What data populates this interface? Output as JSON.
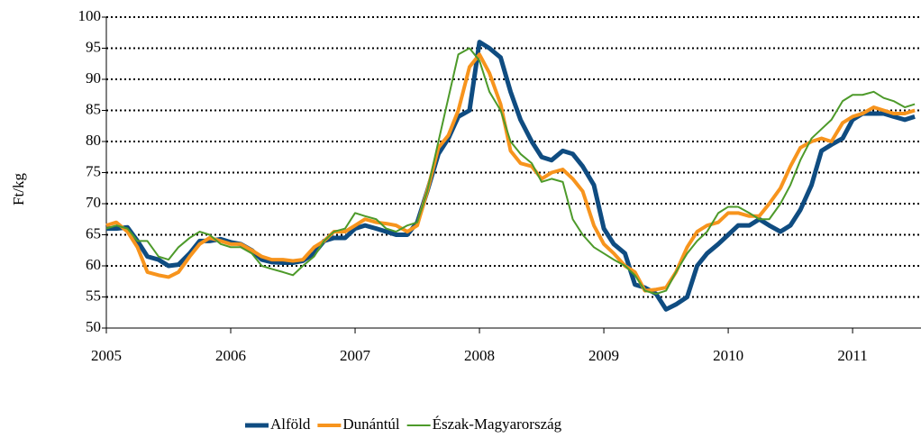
{
  "chart_data": {
    "type": "line",
    "y_label": "Ft/kg",
    "x": [
      2005,
      2005.08,
      2005.17,
      2005.25,
      2005.33,
      2005.42,
      2005.5,
      2005.58,
      2005.67,
      2005.75,
      2005.83,
      2005.92,
      2006,
      2006.08,
      2006.17,
      2006.25,
      2006.33,
      2006.42,
      2006.5,
      2006.58,
      2006.67,
      2006.75,
      2006.83,
      2006.92,
      2007,
      2007.08,
      2007.17,
      2007.25,
      2007.33,
      2007.42,
      2007.5,
      2007.58,
      2007.67,
      2007.75,
      2007.83,
      2007.92,
      2008,
      2008.08,
      2008.17,
      2008.25,
      2008.33,
      2008.42,
      2008.5,
      2008.58,
      2008.67,
      2008.75,
      2008.83,
      2008.92,
      2009,
      2009.08,
      2009.17,
      2009.25,
      2009.33,
      2009.42,
      2009.5,
      2009.58,
      2009.67,
      2009.75,
      2009.83,
      2009.92,
      2010,
      2010.08,
      2010.17,
      2010.25,
      2010.33,
      2010.42,
      2010.5,
      2010.58,
      2010.67,
      2010.75,
      2010.83,
      2010.92,
      2011,
      2011.08,
      2011.17,
      2011.25,
      2011.33,
      2011.42,
      2011.5
    ],
    "series": [
      {
        "name": "Alföld",
        "color": "#0f4c81",
        "width": 5,
        "values": [
          66,
          66,
          66.2,
          64,
          61.5,
          61,
          60,
          60.2,
          62,
          64,
          64,
          64.3,
          63.8,
          63.5,
          62.5,
          61,
          60.6,
          60.5,
          60.5,
          60.8,
          62,
          64,
          64.5,
          64.5,
          66,
          66.5,
          66,
          65.5,
          65,
          65,
          67,
          72,
          78,
          80.5,
          84,
          85,
          96,
          95,
          93.5,
          88,
          83.5,
          80,
          77.5,
          77,
          78.5,
          78,
          76,
          73,
          66,
          63.5,
          62,
          57,
          56.5,
          55.5,
          53,
          53.8,
          55,
          60,
          62,
          63.5,
          65,
          66.5,
          66.5,
          67.5,
          66.5,
          65.5,
          66.5,
          69,
          73,
          78.5,
          79.5,
          80.5,
          83.5,
          84.5,
          84.5,
          84.5,
          84,
          83.5,
          84
        ]
      },
      {
        "name": "Dunántúl",
        "color": "#f7941d",
        "width": 4,
        "values": [
          66.5,
          67,
          65.5,
          63,
          59,
          58.5,
          58.2,
          59,
          61.5,
          63.5,
          64.5,
          64,
          63.5,
          63.5,
          62.5,
          61.5,
          61,
          61,
          60.8,
          61,
          63,
          64,
          65.5,
          65.5,
          66.5,
          67.5,
          67,
          66.8,
          66.5,
          65.5,
          66.5,
          72,
          79,
          81,
          85,
          92,
          94,
          91,
          86,
          78.5,
          76.5,
          76,
          74,
          75,
          75.5,
          74,
          72,
          66.5,
          63.5,
          62,
          60,
          59,
          56,
          56.2,
          56.5,
          59,
          63,
          65.5,
          66.5,
          67,
          68.5,
          68.5,
          68,
          68,
          70,
          72.5,
          76,
          79,
          80,
          80.5,
          80,
          83,
          84,
          84.5,
          85.5,
          85,
          84.5,
          84.5,
          85
        ]
      },
      {
        "name": "Észak-Magyarország",
        "color": "#4d9a2a",
        "width": 2,
        "values": [
          66,
          66.5,
          66,
          64,
          64,
          61.5,
          61,
          63,
          64.5,
          65.5,
          65,
          63.5,
          63,
          63,
          62,
          60,
          59.5,
          59,
          58.5,
          60,
          61.5,
          64,
          65.5,
          66,
          68.5,
          68,
          67.5,
          66,
          65.5,
          66.5,
          67,
          72,
          80,
          87,
          94,
          95,
          93,
          88,
          85,
          80,
          78,
          76.5,
          73.5,
          74,
          73.5,
          67.5,
          65,
          63,
          62,
          61,
          60,
          58.5,
          56,
          55.5,
          56,
          59,
          62,
          64,
          65.5,
          68.5,
          69.5,
          69.5,
          68.5,
          67.5,
          67.5,
          70,
          73,
          77,
          80.5,
          82,
          83.5,
          86.5,
          87.5,
          87.5,
          88,
          87,
          86.5,
          85.5,
          86
        ]
      }
    ],
    "xlim": [
      2005,
      2011.55
    ],
    "xticks": [
      2005,
      2006,
      2007,
      2008,
      2009,
      2010,
      2011
    ],
    "ylim": [
      50,
      100
    ],
    "yticks": [
      50,
      55,
      60,
      65,
      70,
      75,
      80,
      85,
      90,
      95,
      100
    ],
    "grid": true,
    "legend": "bottom"
  }
}
